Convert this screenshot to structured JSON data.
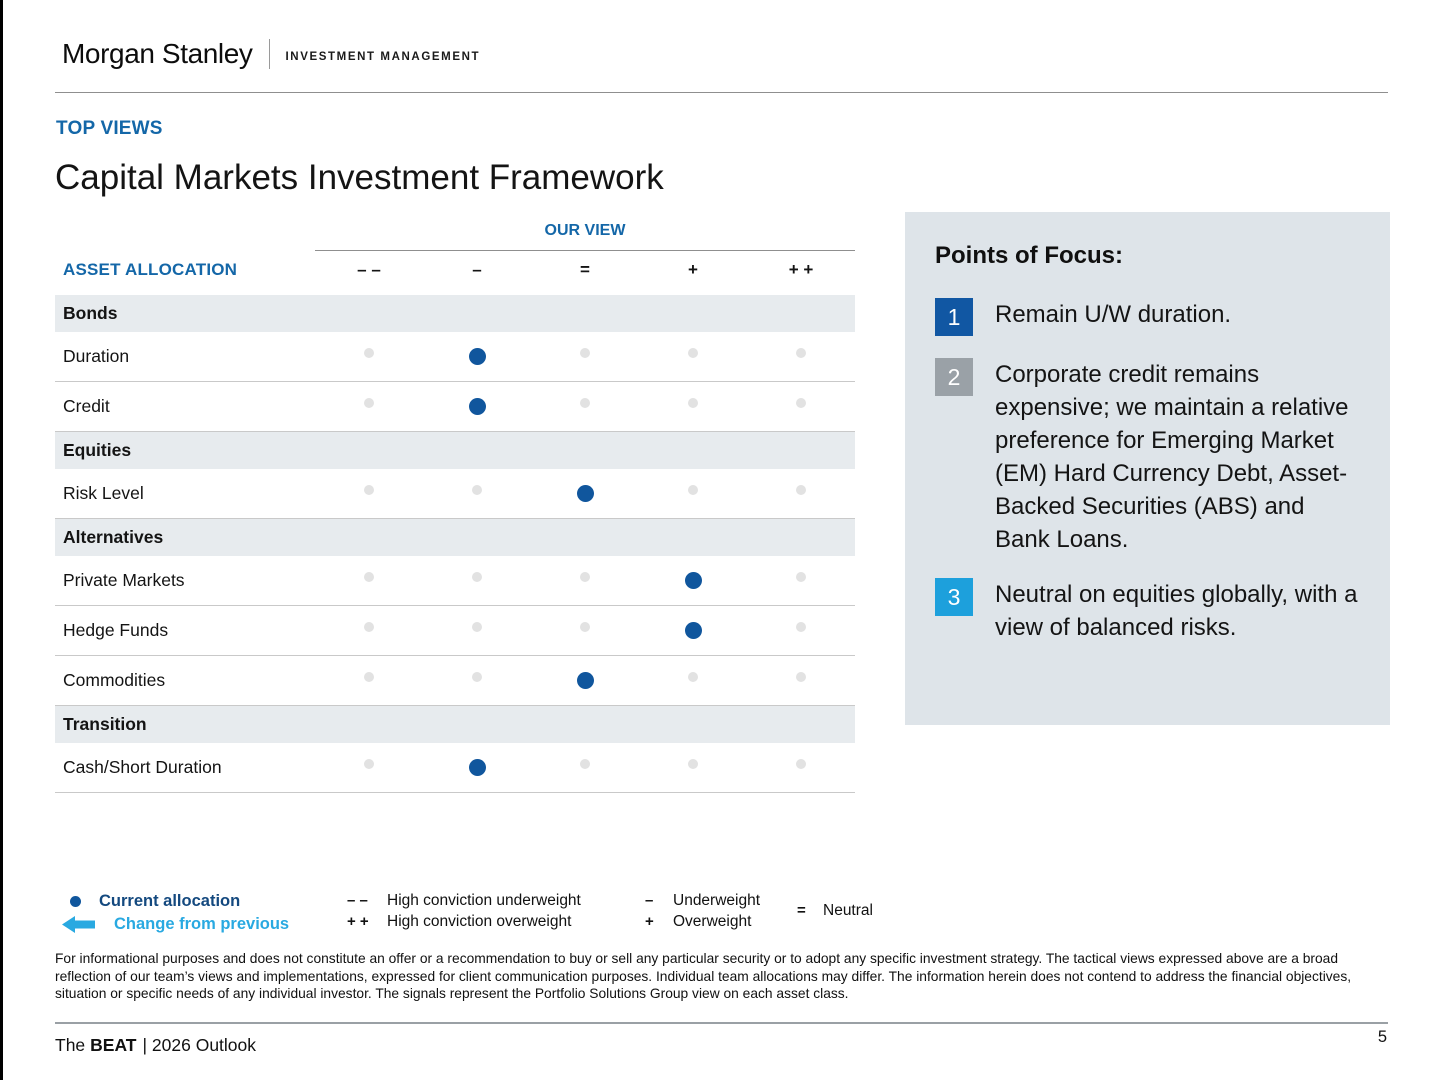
{
  "header": {
    "brand": "Morgan Stanley",
    "division": "INVESTMENT MANAGEMENT"
  },
  "eyebrow": "TOP VIEWS",
  "title": "Capital Markets Investment Framework",
  "table": {
    "our_view_label": "OUR VIEW",
    "asset_allocation_label": "ASSET ALLOCATION",
    "columns": [
      "– –",
      "–",
      "=",
      "+",
      "+ +"
    ],
    "rows": [
      {
        "type": "section",
        "label": "Bonds"
      },
      {
        "type": "data",
        "label": "Duration",
        "allocation": 1,
        "view": "–"
      },
      {
        "type": "data",
        "label": "Credit",
        "allocation": 1,
        "view": "–"
      },
      {
        "type": "section",
        "label": "Equities"
      },
      {
        "type": "data",
        "label": "Risk Level",
        "allocation": 2,
        "view": "="
      },
      {
        "type": "section",
        "label": "Alternatives"
      },
      {
        "type": "data",
        "label": "Private Markets",
        "allocation": 3,
        "view": "+"
      },
      {
        "type": "data",
        "label": "Hedge Funds",
        "allocation": 3,
        "view": "+"
      },
      {
        "type": "data",
        "label": "Commodities",
        "allocation": 2,
        "view": "="
      },
      {
        "type": "section",
        "label": "Transition"
      },
      {
        "type": "data",
        "label": "Cash/Short Duration",
        "allocation": 1,
        "view": "–"
      }
    ]
  },
  "points_of_focus": {
    "heading": "Points of Focus:",
    "items": [
      {
        "number": "1",
        "badge_color": "#1157a3",
        "text": "Remain U/W duration."
      },
      {
        "number": "2",
        "badge_color": "#9aa1a7",
        "text": "Corporate credit remains expensive; we maintain a relative preference for Emerging Market (EM) Hard Currency Debt, Asset-Backed Securities (ABS) and Bank Loans."
      },
      {
        "number": "3",
        "badge_color": "#1da0dc",
        "text": "Neutral on equities globally, with a view of balanced risks."
      }
    ]
  },
  "legend": {
    "current_allocation": "Current allocation",
    "change_from_previous": "Change from previous",
    "items": [
      {
        "symbol": "– –",
        "label": "High conviction underweight"
      },
      {
        "symbol": "+ +",
        "label": "High conviction overweight"
      },
      {
        "symbol": "–",
        "label": "Underweight"
      },
      {
        "symbol": "+",
        "label": "Overweight"
      },
      {
        "symbol": "=",
        "label": "Neutral"
      }
    ]
  },
  "disclaimer": "For informational purposes and does not constitute an offer or a recommendation to buy or sell any particular security or to adopt any specific investment strategy. The tactical views expressed above are a broad reflection of our team’s views and implementations, expressed for client communication purposes. Individual team allocations may differ. The information herein does not contend to address the financial objectives, situation or specific needs of any individual investor. The signals represent the Portfolio Solutions Group view on each asset class.",
  "footer": {
    "publication_prefix": "The",
    "publication_name": "BEAT",
    "publication_suffix": "| 2026 Outlook",
    "page_number": "5"
  },
  "colors": {
    "accent-blue": "#1467a8",
    "dot-blue": "#10569d",
    "dot-gray": "#e2e2e2",
    "section-bg": "#e7ebee",
    "panel-bg": "#dee4e9",
    "badge-1": "#1157a3",
    "badge-2": "#9aa1a7",
    "badge-3": "#1da0dc",
    "legend-navy": "#14497f",
    "legend-cyan": "#29a9e1"
  }
}
